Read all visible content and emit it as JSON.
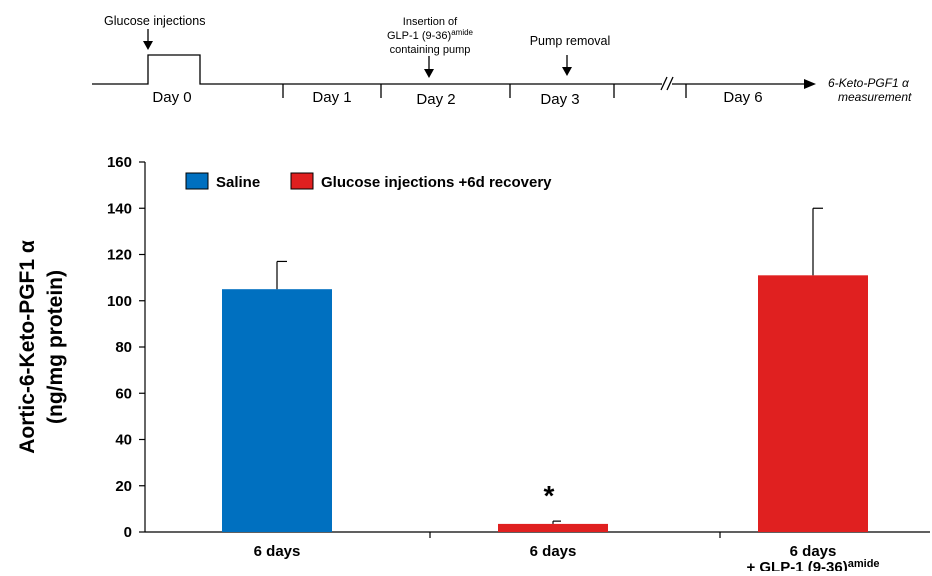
{
  "timeline": {
    "labels": {
      "glucose_injections": "Glucose injections",
      "insertion_line1": "Insertion of",
      "insertion_line2_main": "GLP-1 (9-36)",
      "insertion_line2_sup": "amide",
      "insertion_line3": "containing pump",
      "pump_removal": "Pump removal",
      "measurement_line1": "6-Keto-PGF1 α",
      "measurement_line2": "measurement"
    },
    "days": [
      "Day 0",
      "Day 1",
      "Day 2",
      "Day 3",
      "Day 6"
    ]
  },
  "legend": {
    "saline": "Saline",
    "glucose": "Glucose injections +6d recovery"
  },
  "colors": {
    "saline": "#0070c0",
    "glucose": "#e02020",
    "axis": "#000000"
  },
  "chart_data": {
    "type": "bar",
    "ylabel_line1": "Aortic-6-Keto-PGF1 α",
    "ylabel_line2": "(ng/mg protein)",
    "ylim": [
      0,
      160
    ],
    "yticks": [
      0,
      20,
      40,
      60,
      80,
      100,
      120,
      140,
      160
    ],
    "categories": [
      {
        "line1": "6 days",
        "line2_main": "",
        "line2_sup": ""
      },
      {
        "line1": "6 days",
        "line2_main": "",
        "line2_sup": ""
      },
      {
        "line1": "6 days",
        "line2_main": "+ GLP-1 (9-36)",
        "line2_sup": "amide"
      }
    ],
    "bars": [
      {
        "group": "saline",
        "value": 105,
        "error": 12
      },
      {
        "group": "glucose",
        "value": 3.5,
        "error": 1.2
      },
      {
        "group": "glucose",
        "value": 111,
        "error": 29
      }
    ],
    "annotations": [
      {
        "bar": 1,
        "text": "*"
      }
    ],
    "legend_position": "top-left",
    "grid": false
  }
}
